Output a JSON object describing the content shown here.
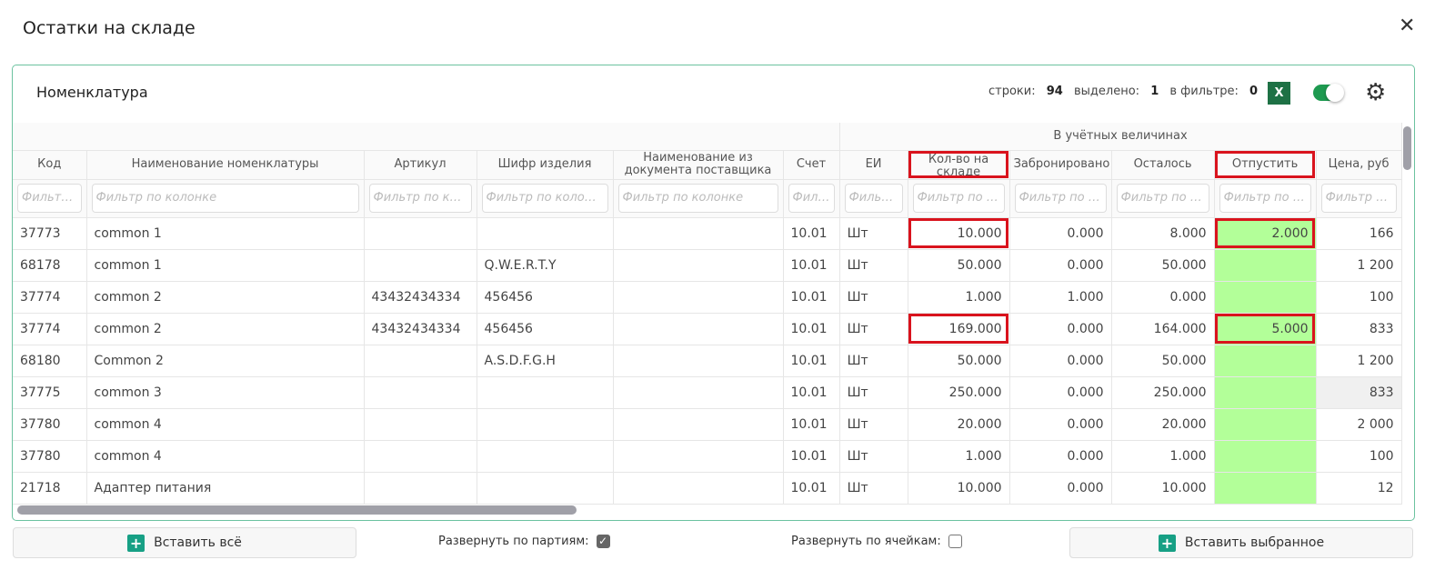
{
  "window": {
    "title": "Остатки на складе"
  },
  "panel": {
    "title": "Номенклатура",
    "stats": {
      "rows_label": "строки:",
      "rows": "94",
      "selected_label": "выделено:",
      "selected": "1",
      "filter_label": "в фильтре:",
      "filter": "0"
    },
    "excel_label": "X",
    "toggle_on": true
  },
  "table": {
    "group_header": "В учётных величинах",
    "columns": [
      "Код",
      "Наименование номенклатуры",
      "Артикул",
      "Шифр изделия",
      "Наименование из документа поставщика",
      "Счет",
      "ЕИ",
      "Кол-во на складе",
      "Забронировано",
      "Осталось",
      "Отпустить",
      "Цена, руб"
    ],
    "filters": [
      "Фильтр по колонке",
      "Фильтр по колонке",
      "Фильтр по колонке",
      "Фильтр по колонке",
      "Фильтр по колонке",
      "Фильтр по колонке",
      "Фильтр по колонке",
      "Фильтр по колонке",
      "Фильтр по колонке",
      "Фильтр по колонке",
      "Фильтр по колонке",
      "Фильтр по колонке"
    ],
    "highlight_color": "#d9131d",
    "release_fill": "#b3ff99",
    "rows": [
      [
        "37773",
        "common 1",
        "",
        "",
        "",
        "10.01",
        "Шт",
        "10.000",
        "0.000",
        "8.000",
        "2.000",
        "166"
      ],
      [
        "68178",
        "common 1",
        "",
        "Q.W.E.R.T.Y",
        "",
        "10.01",
        "Шт",
        "50.000",
        "0.000",
        "50.000",
        "",
        "1 200"
      ],
      [
        "37774",
        "common 2",
        "43432434334",
        "456456",
        "",
        "10.01",
        "Шт",
        "1.000",
        "1.000",
        "0.000",
        "",
        "100"
      ],
      [
        "37774",
        "common 2",
        "43432434334",
        "456456",
        "",
        "10.01",
        "Шт",
        "169.000",
        "0.000",
        "164.000",
        "5.000",
        "833"
      ],
      [
        "68180",
        "Common 2",
        "",
        "A.S.D.F.G.H",
        "",
        "10.01",
        "Шт",
        "50.000",
        "0.000",
        "50.000",
        "",
        "1 200"
      ],
      [
        "37775",
        "common 3",
        "",
        "",
        "",
        "10.01",
        "Шт",
        "250.000",
        "0.000",
        "250.000",
        "",
        "833"
      ],
      [
        "37780",
        "common 4",
        "",
        "",
        "",
        "10.01",
        "Шт",
        "20.000",
        "0.000",
        "20.000",
        "",
        "2 000"
      ],
      [
        "37780",
        "common 4",
        "",
        "",
        "",
        "10.01",
        "Шт",
        "1.000",
        "0.000",
        "1.000",
        "",
        "100"
      ],
      [
        "21718",
        "Адаптер питания",
        "",
        "",
        "",
        "10.01",
        "Шт",
        "10.000",
        "0.000",
        "10.000",
        "",
        "12"
      ]
    ]
  },
  "footer": {
    "insert_all": "Вставить всё",
    "expand_batches": "Развернуть по партиям:",
    "expand_batches_checked": true,
    "expand_cells": "Развернуть по ячейкам:",
    "expand_cells_checked": false,
    "insert_selected": "Вставить выбранное"
  }
}
